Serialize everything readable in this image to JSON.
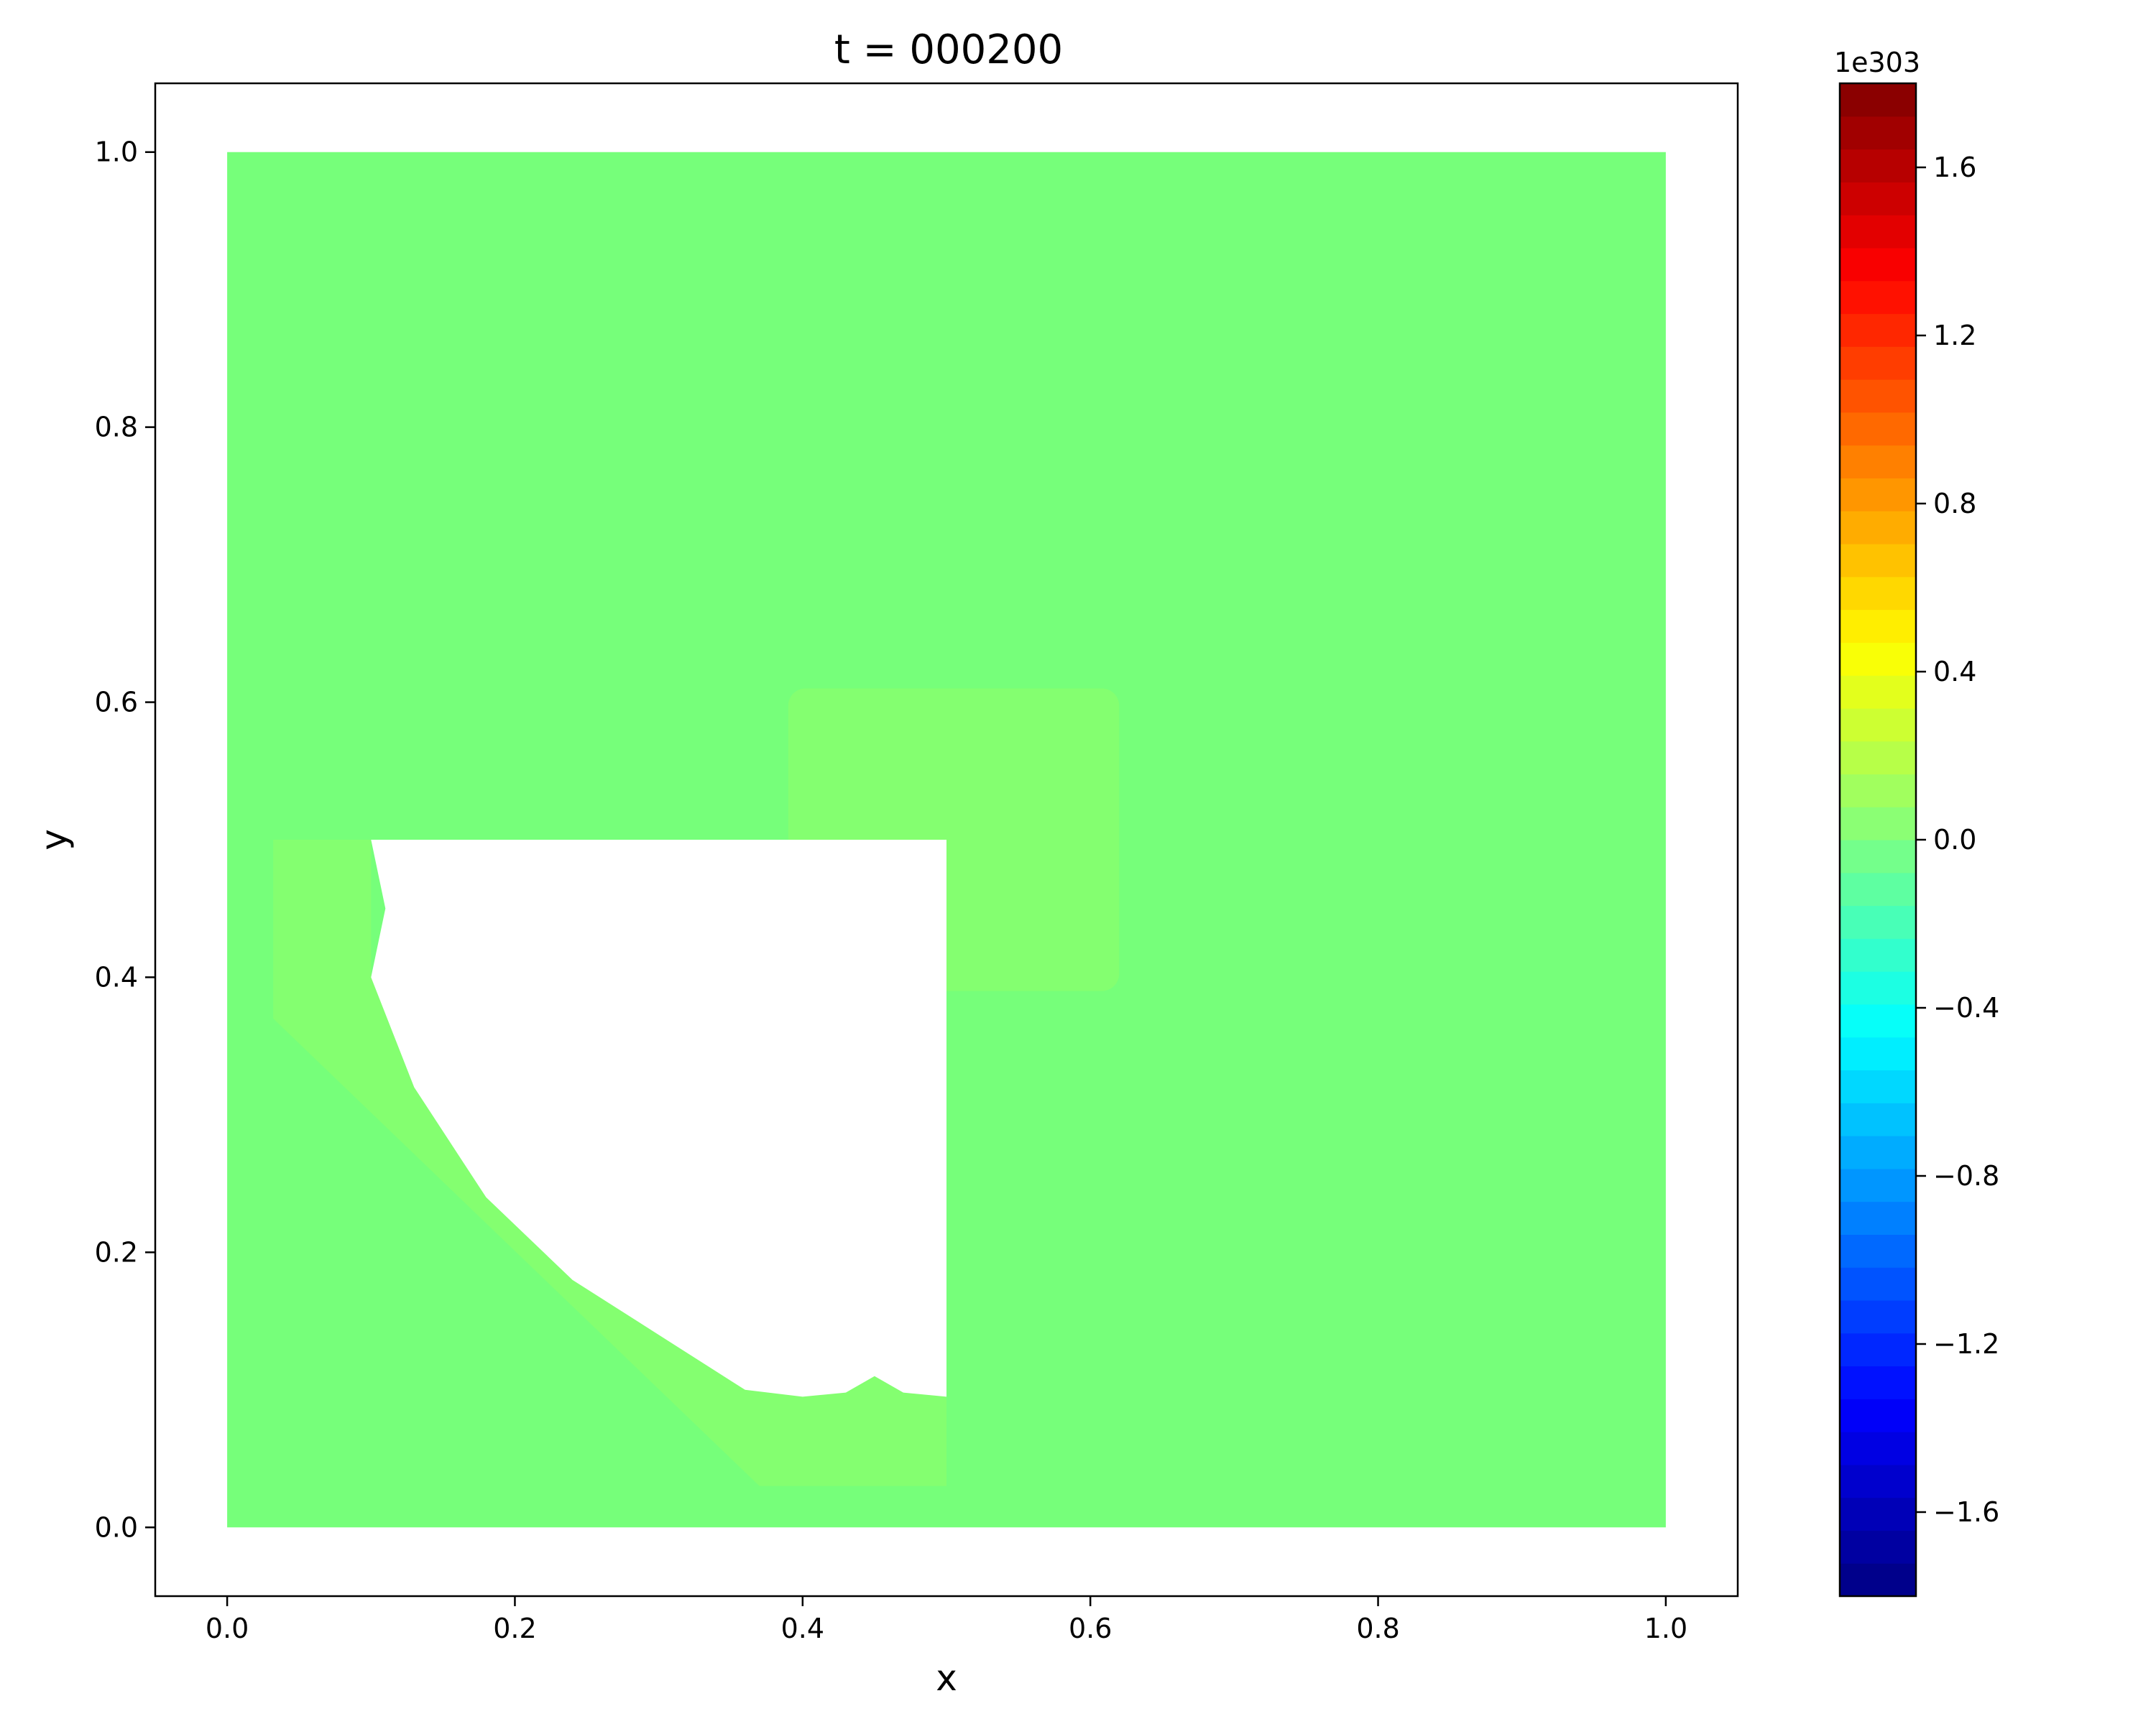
{
  "chart_data": {
    "type": "heatmap",
    "title": "t = 000200",
    "xlabel": "x",
    "ylabel": "y",
    "xlim": [
      -0.05,
      1.05
    ],
    "ylim": [
      -0.05,
      1.05
    ],
    "x_ticks": [
      0.0,
      0.2,
      0.4,
      0.6,
      0.8,
      1.0
    ],
    "x_tick_labels": [
      "0.0",
      "0.2",
      "0.4",
      "0.6",
      "0.8",
      "1.0"
    ],
    "y_ticks": [
      0.0,
      0.2,
      0.4,
      0.6,
      0.8,
      1.0
    ],
    "y_tick_labels": [
      "0.0",
      "0.2",
      "0.4",
      "0.6",
      "0.8",
      "1.0"
    ],
    "grid": false,
    "colormap": "jet",
    "colorbar": {
      "range": [
        -1.8,
        1.8
      ],
      "levels": 46,
      "offset_label": "1e303",
      "ticks": [
        1.6,
        1.2,
        0.8,
        0.4,
        0.0,
        -0.4,
        -0.8,
        -1.2,
        -1.6
      ],
      "tick_labels": [
        "1.6",
        "1.2",
        "0.8",
        "0.4",
        "0.0",
        "−0.4",
        "−0.8",
        "−1.2",
        "−1.6"
      ]
    },
    "field": {
      "background": {
        "value": 0.0,
        "color": "#76ff7a",
        "x": [
          0.0,
          1.0
        ],
        "y": [
          0.0,
          1.0
        ]
      },
      "raised_patch": {
        "value": 0.05,
        "color": "#84ff70",
        "x": [
          0.39,
          0.62
        ],
        "y": [
          0.39,
          0.61
        ]
      },
      "blank_region": {
        "description_value": "NaN",
        "color": "#ffffff",
        "outline": [
          [
            0.1,
            0.5
          ],
          [
            0.5,
            0.5
          ],
          [
            0.5,
            0.095
          ],
          [
            0.47,
            0.098
          ],
          [
            0.45,
            0.11
          ],
          [
            0.43,
            0.098
          ],
          [
            0.4,
            0.095
          ],
          [
            0.36,
            0.1
          ],
          [
            0.3,
            0.14
          ],
          [
            0.24,
            0.18
          ],
          [
            0.18,
            0.24
          ],
          [
            0.13,
            0.32
          ],
          [
            0.1,
            0.4
          ],
          [
            0.11,
            0.45
          ],
          [
            0.1,
            0.5
          ]
        ]
      },
      "front_band": {
        "value": 0.05,
        "color": "#84ff70",
        "outline": [
          [
            0.032,
            0.5
          ],
          [
            0.1,
            0.5
          ],
          [
            0.1,
            0.4
          ],
          [
            0.13,
            0.32
          ],
          [
            0.18,
            0.24
          ],
          [
            0.24,
            0.18
          ],
          [
            0.3,
            0.14
          ],
          [
            0.36,
            0.1
          ],
          [
            0.4,
            0.095
          ],
          [
            0.43,
            0.098
          ],
          [
            0.45,
            0.11
          ],
          [
            0.47,
            0.098
          ],
          [
            0.5,
            0.095
          ],
          [
            0.5,
            0.03
          ],
          [
            0.37,
            0.03
          ],
          [
            0.032,
            0.37
          ]
        ]
      }
    }
  }
}
